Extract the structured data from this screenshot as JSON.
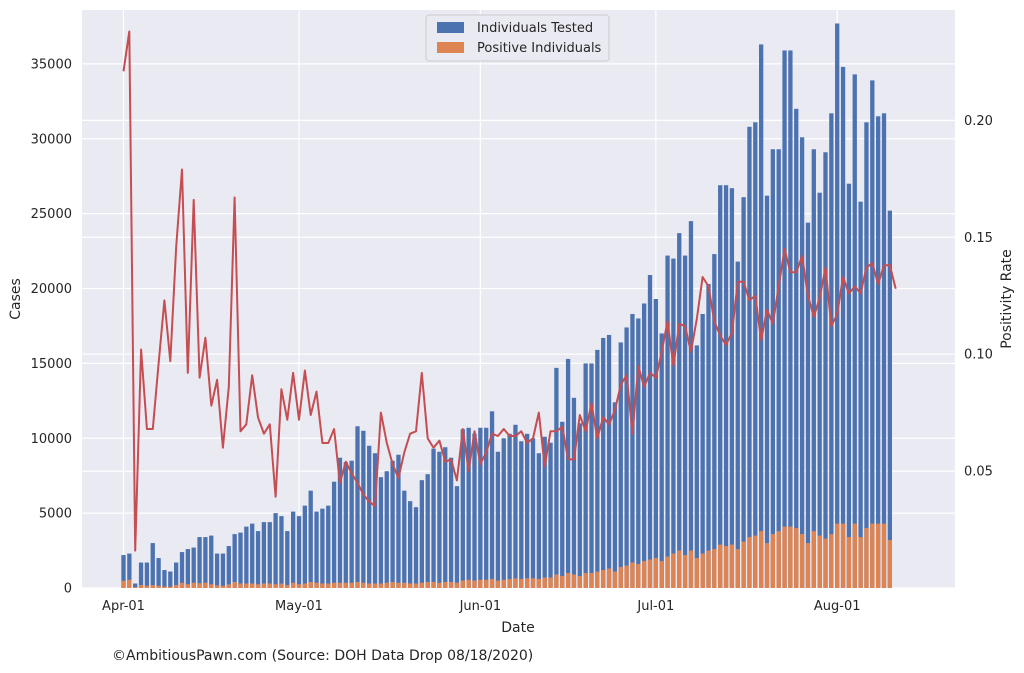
{
  "caption": "©AmbitiousPawn.com (Source: DOH Data Drop 08/18/2020)",
  "chart_data": {
    "type": "bar",
    "xlabel": "Date",
    "ylabel": "Cases",
    "y2label": "Positivity Rate",
    "ylim": [
      0,
      38600
    ],
    "y2lim": [
      0.0,
      0.2472
    ],
    "yticks": [
      0,
      5000,
      10000,
      15000,
      20000,
      25000,
      30000,
      35000
    ],
    "y2ticks": [
      0.05,
      0.1,
      0.15,
      0.2
    ],
    "y2tick_labels": [
      "0.05",
      "0.10",
      "0.15",
      "0.20"
    ],
    "xticks": [
      {
        "label": "Apr-01",
        "day": 0
      },
      {
        "label": "May-01",
        "day": 30
      },
      {
        "label": "Jun-01",
        "day": 61
      },
      {
        "label": "Jul-01",
        "day": 91
      },
      {
        "label": "Aug-01",
        "day": 122
      }
    ],
    "x_start": "2020-04-01",
    "x_end": "2020-08-17",
    "grid": true,
    "legend_position": "top-center",
    "colors": {
      "tested": "#4c72b0",
      "positive": "#dd8452",
      "rate": "#c44e52",
      "background": "#eaeaf2",
      "grid": "#ffffff"
    },
    "series": [
      {
        "name": "Individuals Tested",
        "kind": "bar",
        "axis": "left",
        "values": [
          2200,
          2300,
          300,
          1700,
          1700,
          3000,
          2000,
          1200,
          1100,
          1700,
          2400,
          2600,
          2700,
          3400,
          3400,
          3500,
          2300,
          2300,
          2800,
          3600,
          3700,
          4100,
          4300,
          3800,
          4400,
          4400,
          5000,
          4800,
          3800,
          5100,
          4800,
          5500,
          6500,
          5100,
          5300,
          5500,
          7100,
          8700,
          8400,
          8500,
          10800,
          10500,
          9500,
          9000,
          7400,
          7800,
          8500,
          8900,
          6500,
          5800,
          5400,
          7200,
          7600,
          9300,
          9100,
          9400,
          8700,
          6800,
          10600,
          10700,
          10300,
          10700,
          10700,
          11800,
          9100,
          10000,
          10300,
          10900,
          9800,
          10300,
          10000,
          9000,
          10100,
          9700,
          14700,
          11100,
          15300,
          12700,
          11000,
          15000,
          15000,
          15900,
          16700,
          16900,
          12400,
          16400,
          17400,
          18300,
          18000,
          19000,
          20900,
          19300,
          17000,
          22200,
          22000,
          23700,
          22200,
          24500,
          16200,
          18300,
          20300,
          22300,
          26900,
          26900,
          26700,
          21800,
          26100,
          30800,
          31100,
          36300,
          26200,
          29300,
          29300,
          35900,
          35900,
          32000,
          30100,
          24400,
          29300,
          26400,
          29100,
          31700,
          37700,
          34800,
          27000,
          34300,
          25800,
          31100,
          33900,
          31500,
          31700,
          25200
        ]
      },
      {
        "name": "Positive Individuals",
        "kind": "bar",
        "axis": "left",
        "values": [
          480,
          550,
          60,
          200,
          150,
          200,
          150,
          100,
          90,
          200,
          350,
          250,
          350,
          320,
          350,
          250,
          180,
          150,
          250,
          400,
          300,
          300,
          300,
          250,
          300,
          300,
          250,
          300,
          200,
          350,
          250,
          300,
          400,
          350,
          300,
          300,
          350,
          350,
          350,
          350,
          400,
          350,
          300,
          300,
          300,
          350,
          400,
          350,
          350,
          300,
          300,
          350,
          400,
          400,
          350,
          400,
          400,
          350,
          500,
          550,
          500,
          550,
          550,
          600,
          500,
          550,
          600,
          650,
          600,
          650,
          650,
          600,
          700,
          700,
          900,
          800,
          1000,
          900,
          800,
          1000,
          1000,
          1100,
          1200,
          1300,
          1100,
          1400,
          1500,
          1700,
          1600,
          1800,
          1900,
          2000,
          1800,
          2100,
          2300,
          2500,
          2200,
          2500,
          2000,
          2300,
          2500,
          2600,
          2900,
          2800,
          2900,
          2600,
          3100,
          3400,
          3500,
          3800,
          3000,
          3600,
          3800,
          4100,
          4100,
          4000,
          3600,
          3000,
          3800,
          3500,
          3300,
          3600,
          4300,
          4300,
          3400,
          4300,
          3400,
          4000,
          4300,
          4300,
          4300,
          3200
        ]
      },
      {
        "name": "",
        "kind": "line",
        "axis": "right",
        "values": [
          0.221,
          0.238,
          0.016,
          0.102,
          0.068,
          0.068,
          0.096,
          0.123,
          0.097,
          0.146,
          0.179,
          0.092,
          0.166,
          0.09,
          0.107,
          0.078,
          0.089,
          0.06,
          0.086,
          0.167,
          0.067,
          0.07,
          0.091,
          0.073,
          0.066,
          0.07,
          0.039,
          0.085,
          0.072,
          0.092,
          0.072,
          0.093,
          0.074,
          0.084,
          0.062,
          0.062,
          0.068,
          0.045,
          0.054,
          0.049,
          0.045,
          0.04,
          0.037,
          0.035,
          0.075,
          0.062,
          0.053,
          0.047,
          0.058,
          0.066,
          0.067,
          0.092,
          0.064,
          0.06,
          0.063,
          0.054,
          0.055,
          0.046,
          0.068,
          0.05,
          0.067,
          0.053,
          0.058,
          0.066,
          0.065,
          0.068,
          0.065,
          0.065,
          0.067,
          0.062,
          0.064,
          0.075,
          0.052,
          0.067,
          0.067,
          0.069,
          0.055,
          0.055,
          0.074,
          0.067,
          0.079,
          0.064,
          0.073,
          0.07,
          0.076,
          0.087,
          0.091,
          0.066,
          0.095,
          0.086,
          0.092,
          0.09,
          0.101,
          0.114,
          0.095,
          0.113,
          0.112,
          0.101,
          0.115,
          0.133,
          0.129,
          0.114,
          0.108,
          0.104,
          0.109,
          0.131,
          0.131,
          0.123,
          0.125,
          0.106,
          0.119,
          0.113,
          0.129,
          0.145,
          0.135,
          0.135,
          0.142,
          0.125,
          0.116,
          0.124,
          0.137,
          0.112,
          0.117,
          0.133,
          0.126,
          0.129,
          0.126,
          0.137,
          0.139,
          0.13,
          0.138,
          0.138,
          0.128
        ]
      }
    ]
  }
}
